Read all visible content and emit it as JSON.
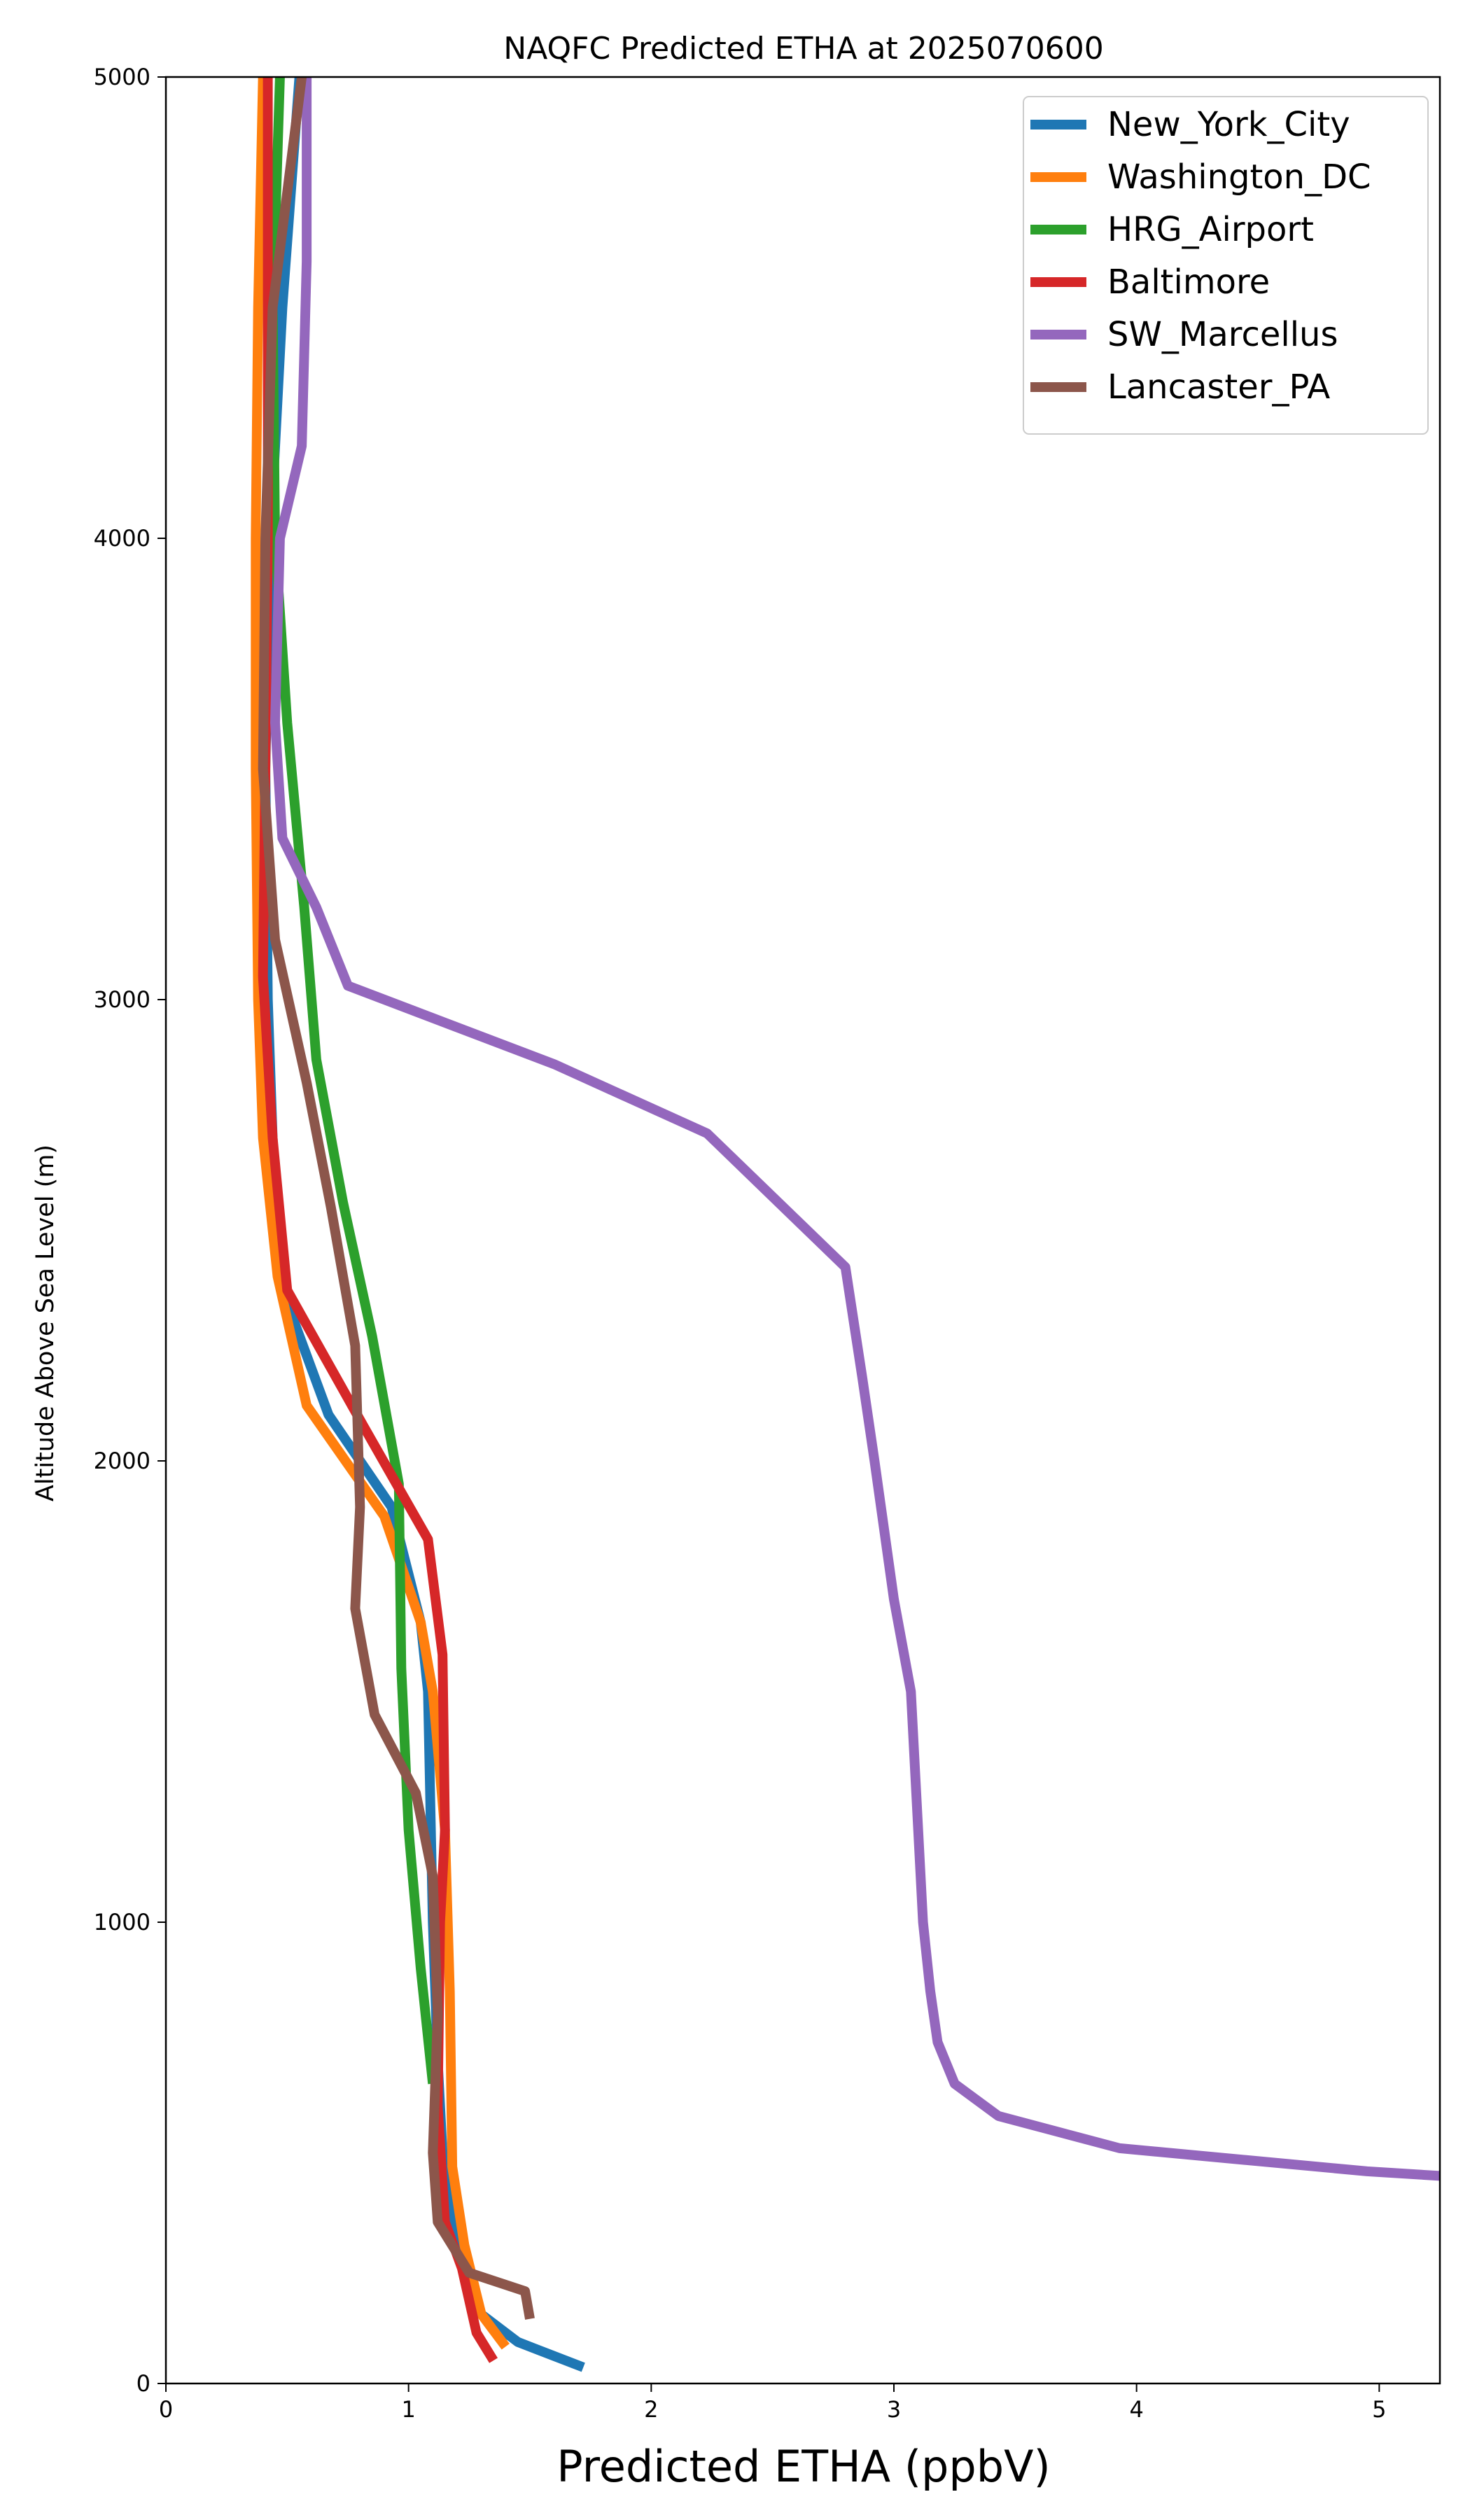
{
  "chart_data": {
    "type": "line",
    "title": "NAQFC Predicted ETHA at 2025070600",
    "xlabel": "Predicted ETHA (ppbV)",
    "ylabel": "Altitude Above Sea Level (m)",
    "xlim": [
      0,
      5.25
    ],
    "ylim": [
      0,
      5000
    ],
    "xticks": [
      0,
      1,
      2,
      3,
      4,
      5
    ],
    "yticks": [
      0,
      1000,
      2000,
      3000,
      4000,
      5000
    ],
    "grid": false,
    "legend_position": "top-right",
    "series": [
      {
        "name": "New_York_City",
        "color": "#1f77b4",
        "points": [
          [
            1.72,
            35
          ],
          [
            1.45,
            90
          ],
          [
            1.3,
            150
          ],
          [
            1.2,
            300
          ],
          [
            1.14,
            500
          ],
          [
            1.12,
            700
          ],
          [
            1.1,
            1000
          ],
          [
            1.08,
            1500
          ],
          [
            1.05,
            1650
          ],
          [
            0.93,
            1900
          ],
          [
            0.67,
            2100
          ],
          [
            0.53,
            2300
          ],
          [
            0.47,
            2400
          ],
          [
            0.44,
            2700
          ],
          [
            0.42,
            3000
          ],
          [
            0.41,
            3500
          ],
          [
            0.43,
            4000
          ],
          [
            0.48,
            4500
          ],
          [
            0.55,
            5000
          ]
        ]
      },
      {
        "name": "Washington_DC",
        "color": "#ff7f0e",
        "points": [
          [
            1.4,
            80
          ],
          [
            1.3,
            150
          ],
          [
            1.23,
            300
          ],
          [
            1.18,
            470
          ],
          [
            1.17,
            850
          ],
          [
            1.15,
            1200
          ],
          [
            1.1,
            1500
          ],
          [
            1.05,
            1650
          ],
          [
            0.9,
            1880
          ],
          [
            0.58,
            2120
          ],
          [
            0.46,
            2400
          ],
          [
            0.4,
            2700
          ],
          [
            0.38,
            3000
          ],
          [
            0.37,
            3500
          ],
          [
            0.37,
            4000
          ],
          [
            0.38,
            4500
          ],
          [
            0.4,
            5000
          ]
        ]
      },
      {
        "name": "HRG_Airport",
        "color": "#2ca02c",
        "points": [
          [
            1.1,
            650
          ],
          [
            1.05,
            900
          ],
          [
            1.0,
            1200
          ],
          [
            0.97,
            1550
          ],
          [
            0.96,
            1950
          ],
          [
            0.85,
            2270
          ],
          [
            0.73,
            2560
          ],
          [
            0.62,
            2870
          ],
          [
            0.57,
            3200
          ],
          [
            0.5,
            3600
          ],
          [
            0.45,
            4000
          ],
          [
            0.44,
            4500
          ],
          [
            0.47,
            5000
          ]
        ]
      },
      {
        "name": "Baltimore",
        "color": "#d62728",
        "points": [
          [
            1.35,
            50
          ],
          [
            1.28,
            110
          ],
          [
            1.22,
            250
          ],
          [
            1.15,
            350
          ],
          [
            1.12,
            600
          ],
          [
            1.13,
            1000
          ],
          [
            1.15,
            1200
          ],
          [
            1.14,
            1580
          ],
          [
            1.08,
            1830
          ],
          [
            0.82,
            2070
          ],
          [
            0.5,
            2370
          ],
          [
            0.44,
            2700
          ],
          [
            0.4,
            3050
          ],
          [
            0.41,
            3500
          ],
          [
            0.42,
            4000
          ],
          [
            0.42,
            4500
          ],
          [
            0.42,
            5000
          ]
        ]
      },
      {
        "name": "SW_Marcellus",
        "color": "#9467bd",
        "points": [
          [
            5.25,
            450
          ],
          [
            4.95,
            460
          ],
          [
            3.93,
            510
          ],
          [
            3.43,
            580
          ],
          [
            3.25,
            650
          ],
          [
            3.18,
            740
          ],
          [
            3.15,
            850
          ],
          [
            3.12,
            1000
          ],
          [
            3.07,
            1500
          ],
          [
            3.0,
            1700
          ],
          [
            2.92,
            2000
          ],
          [
            2.87,
            2180
          ],
          [
            2.8,
            2420
          ],
          [
            2.23,
            2710
          ],
          [
            1.6,
            2860
          ],
          [
            1.0,
            2980
          ],
          [
            0.75,
            3030
          ],
          [
            0.62,
            3200
          ],
          [
            0.48,
            3350
          ],
          [
            0.45,
            3600
          ],
          [
            0.47,
            4000
          ],
          [
            0.56,
            4200
          ],
          [
            0.58,
            4600
          ],
          [
            0.58,
            5000
          ]
        ]
      },
      {
        "name": "Lancaster_PA",
        "color": "#8c564b",
        "points": [
          [
            1.5,
            140
          ],
          [
            1.48,
            200
          ],
          [
            1.25,
            240
          ],
          [
            1.12,
            350
          ],
          [
            1.1,
            500
          ],
          [
            1.12,
            800
          ],
          [
            1.1,
            1100
          ],
          [
            1.03,
            1280
          ],
          [
            0.86,
            1450
          ],
          [
            0.78,
            1680
          ],
          [
            0.8,
            1900
          ],
          [
            0.78,
            2250
          ],
          [
            0.68,
            2550
          ],
          [
            0.58,
            2820
          ],
          [
            0.45,
            3130
          ],
          [
            0.4,
            3500
          ],
          [
            0.41,
            4000
          ],
          [
            0.44,
            4500
          ],
          [
            0.56,
            5000
          ]
        ]
      }
    ]
  }
}
